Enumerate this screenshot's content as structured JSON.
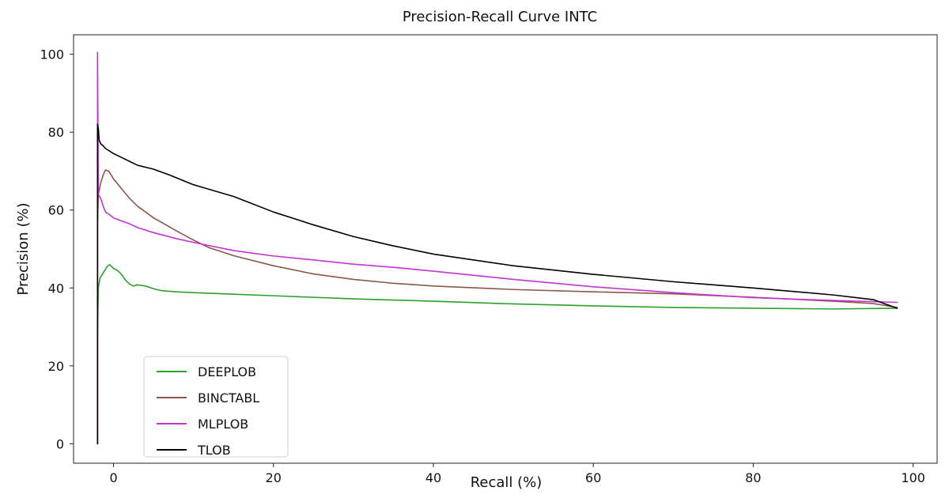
{
  "chart_data": {
    "type": "line",
    "title": "Precision-Recall Curve INTC",
    "xlabel": "Recall (%)",
    "ylabel": "Precision (%)",
    "xlim": [
      -5,
      103
    ],
    "ylim": [
      -5,
      105
    ],
    "xticks": [
      0,
      20,
      40,
      60,
      80,
      100
    ],
    "yticks": [
      0,
      20,
      40,
      60,
      80,
      100
    ],
    "grid": false,
    "legend_position": "lower-left",
    "series": [
      {
        "name": "DEEPLOB",
        "color": "#2ca02c",
        "points": [
          [
            -2,
            0
          ],
          [
            -2,
            28
          ],
          [
            -1.9,
            40
          ],
          [
            -1.7,
            42.5
          ],
          [
            -1.4,
            43.5
          ],
          [
            -1.1,
            44.5
          ],
          [
            -0.8,
            45.5
          ],
          [
            -0.5,
            46
          ],
          [
            0,
            45
          ],
          [
            0.5,
            44.5
          ],
          [
            1,
            43.5
          ],
          [
            1.5,
            42
          ],
          [
            2,
            41
          ],
          [
            2.5,
            40.5
          ],
          [
            3,
            40.8
          ],
          [
            4,
            40.5
          ],
          [
            5,
            39.8
          ],
          [
            6,
            39.3
          ],
          [
            8,
            39
          ],
          [
            10,
            38.8
          ],
          [
            15,
            38.4
          ],
          [
            20,
            38
          ],
          [
            30,
            37.2
          ],
          [
            40,
            36.6
          ],
          [
            50,
            35.9
          ],
          [
            60,
            35.4
          ],
          [
            70,
            35
          ],
          [
            80,
            34.8
          ],
          [
            90,
            34.6
          ],
          [
            98,
            34.8
          ]
        ]
      },
      {
        "name": "BINCTABL",
        "color": "#8c564b",
        "points": [
          [
            -2,
            0
          ],
          [
            -2,
            56
          ],
          [
            -1.9,
            64
          ],
          [
            -1.6,
            67
          ],
          [
            -1.3,
            69
          ],
          [
            -1,
            70.3
          ],
          [
            -0.6,
            70
          ],
          [
            0,
            68
          ],
          [
            1,
            65.5
          ],
          [
            2,
            63
          ],
          [
            3,
            61
          ],
          [
            5,
            58
          ],
          [
            8,
            54.5
          ],
          [
            10,
            52.3
          ],
          [
            12,
            50.3
          ],
          [
            15,
            48.3
          ],
          [
            20,
            45.7
          ],
          [
            25,
            43.6
          ],
          [
            30,
            42.2
          ],
          [
            35,
            41.2
          ],
          [
            40,
            40.5
          ],
          [
            50,
            39.6
          ],
          [
            60,
            39
          ],
          [
            70,
            38.5
          ],
          [
            80,
            37.6
          ],
          [
            90,
            36.6
          ],
          [
            95,
            36
          ],
          [
            98,
            35
          ]
        ]
      },
      {
        "name": "MLPLOB",
        "color": "#c434d2",
        "points": [
          [
            -2,
            0
          ],
          [
            -2,
            100.5
          ],
          [
            -1.9,
            64
          ],
          [
            -1.6,
            63
          ],
          [
            -1.3,
            61
          ],
          [
            -1,
            59.5
          ],
          [
            -0.5,
            58.8
          ],
          [
            0,
            58
          ],
          [
            1,
            57.2
          ],
          [
            2,
            56.5
          ],
          [
            3,
            55.5
          ],
          [
            5,
            54.2
          ],
          [
            8,
            52.6
          ],
          [
            10,
            51.7
          ],
          [
            15,
            49.6
          ],
          [
            20,
            48.2
          ],
          [
            25,
            47.2
          ],
          [
            30,
            46.1
          ],
          [
            35,
            45.3
          ],
          [
            40,
            44.3
          ],
          [
            50,
            42.2
          ],
          [
            60,
            40.3
          ],
          [
            70,
            38.8
          ],
          [
            80,
            37.5
          ],
          [
            90,
            36.8
          ],
          [
            98,
            36.3
          ]
        ]
      },
      {
        "name": "TLOB",
        "color": "#000000",
        "points": [
          [
            -2,
            0
          ],
          [
            -2,
            82
          ],
          [
            -1.9,
            81
          ],
          [
            -1.8,
            78
          ],
          [
            -1.6,
            77
          ],
          [
            -1.3,
            76.5
          ],
          [
            -1,
            75.8
          ],
          [
            0,
            74.5
          ],
          [
            1,
            73.5
          ],
          [
            2,
            72.5
          ],
          [
            3,
            71.5
          ],
          [
            5,
            70.5
          ],
          [
            7,
            69
          ],
          [
            10,
            66.5
          ],
          [
            15,
            63.5
          ],
          [
            20,
            59.5
          ],
          [
            25,
            56.2
          ],
          [
            30,
            53.2
          ],
          [
            35,
            50.8
          ],
          [
            40,
            48.7
          ],
          [
            50,
            45.7
          ],
          [
            60,
            43.5
          ],
          [
            70,
            41.6
          ],
          [
            80,
            40
          ],
          [
            90,
            38.2
          ],
          [
            95,
            37
          ],
          [
            98,
            34.8
          ]
        ]
      }
    ]
  }
}
